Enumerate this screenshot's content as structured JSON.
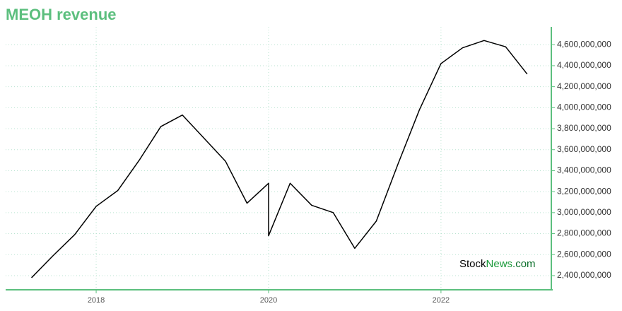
{
  "chart_data": {
    "type": "line",
    "title": "MEOH revenue",
    "x": [
      2017.25,
      2017.5,
      2017.75,
      2018.0,
      2018.25,
      2018.5,
      2018.75,
      2019.0,
      2019.25,
      2019.5,
      2019.75,
      2020.0,
      2020.0,
      2020.25,
      2020.5,
      2020.75,
      2021.0,
      2021.25,
      2021.5,
      2021.75,
      2022.0,
      2022.25,
      2022.5,
      2022.75,
      2023.0
    ],
    "series": [
      {
        "name": "MEOH revenue",
        "color": "#000000",
        "values": [
          2380000000,
          2590000000,
          2790000000,
          3060000000,
          3210000000,
          3500000000,
          3820000000,
          3930000000,
          3710000000,
          3490000000,
          3090000000,
          3280000000,
          2780000000,
          3280000000,
          3070000000,
          3000000000,
          2660000000,
          2920000000,
          3460000000,
          3980000000,
          4420000000,
          4570000000,
          4640000000,
          4580000000,
          4320000000
        ]
      }
    ],
    "xlim": [
      2016.95,
      2023.28
    ],
    "xticks": [
      2018,
      2020,
      2022
    ],
    "ylim": [
      2265000000,
      4770000000
    ],
    "yticks": [
      {
        "value": 2400000000,
        "label": "2,400,000,000"
      },
      {
        "value": 2600000000,
        "label": "2,600,000,000"
      },
      {
        "value": 2800000000,
        "label": "2,800,000,000"
      },
      {
        "value": 3000000000,
        "label": "3,000,000,000"
      },
      {
        "value": 3200000000,
        "label": "3,200,000,000"
      },
      {
        "value": 3400000000,
        "label": "3,400,000,000"
      },
      {
        "value": 3600000000,
        "label": "3,600,000,000"
      },
      {
        "value": 3800000000,
        "label": "3,800,000,000"
      },
      {
        "value": 4000000000,
        "label": "4,000,000,000"
      },
      {
        "value": 4200000000,
        "label": "4,200,000,000"
      },
      {
        "value": 4400000000,
        "label": "4,400,000,000"
      },
      {
        "value": 4600000000,
        "label": "4,600,000,000"
      }
    ],
    "grid": true,
    "watermark": [
      "Stock",
      "News",
      ".com"
    ]
  }
}
